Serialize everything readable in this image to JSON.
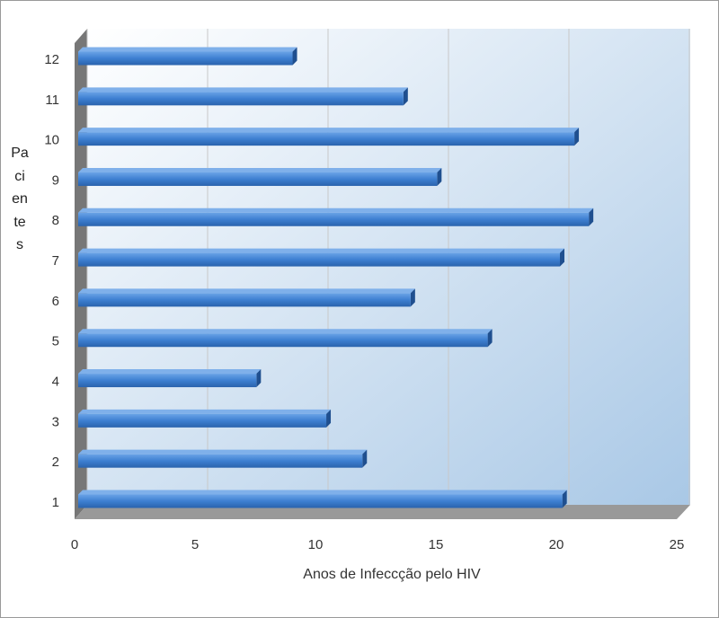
{
  "chart_data": {
    "type": "bar3d",
    "orientation": "horizontal",
    "x_label": "Anos de Infeccção pelo HIV",
    "y_label": "Pacientes",
    "categories": [
      "1",
      "2",
      "3",
      "4",
      "5",
      "6",
      "7",
      "8",
      "9",
      "10",
      "11",
      "12"
    ],
    "values": [
      20.1,
      11.8,
      10.3,
      7.4,
      17.0,
      13.8,
      20.0,
      21.2,
      14.9,
      20.6,
      13.5,
      8.9
    ],
    "color": "#3d7fd1",
    "xlim": [
      0,
      25
    ],
    "xticks": [
      0,
      5,
      10,
      15,
      20,
      25
    ],
    "grid": true
  }
}
